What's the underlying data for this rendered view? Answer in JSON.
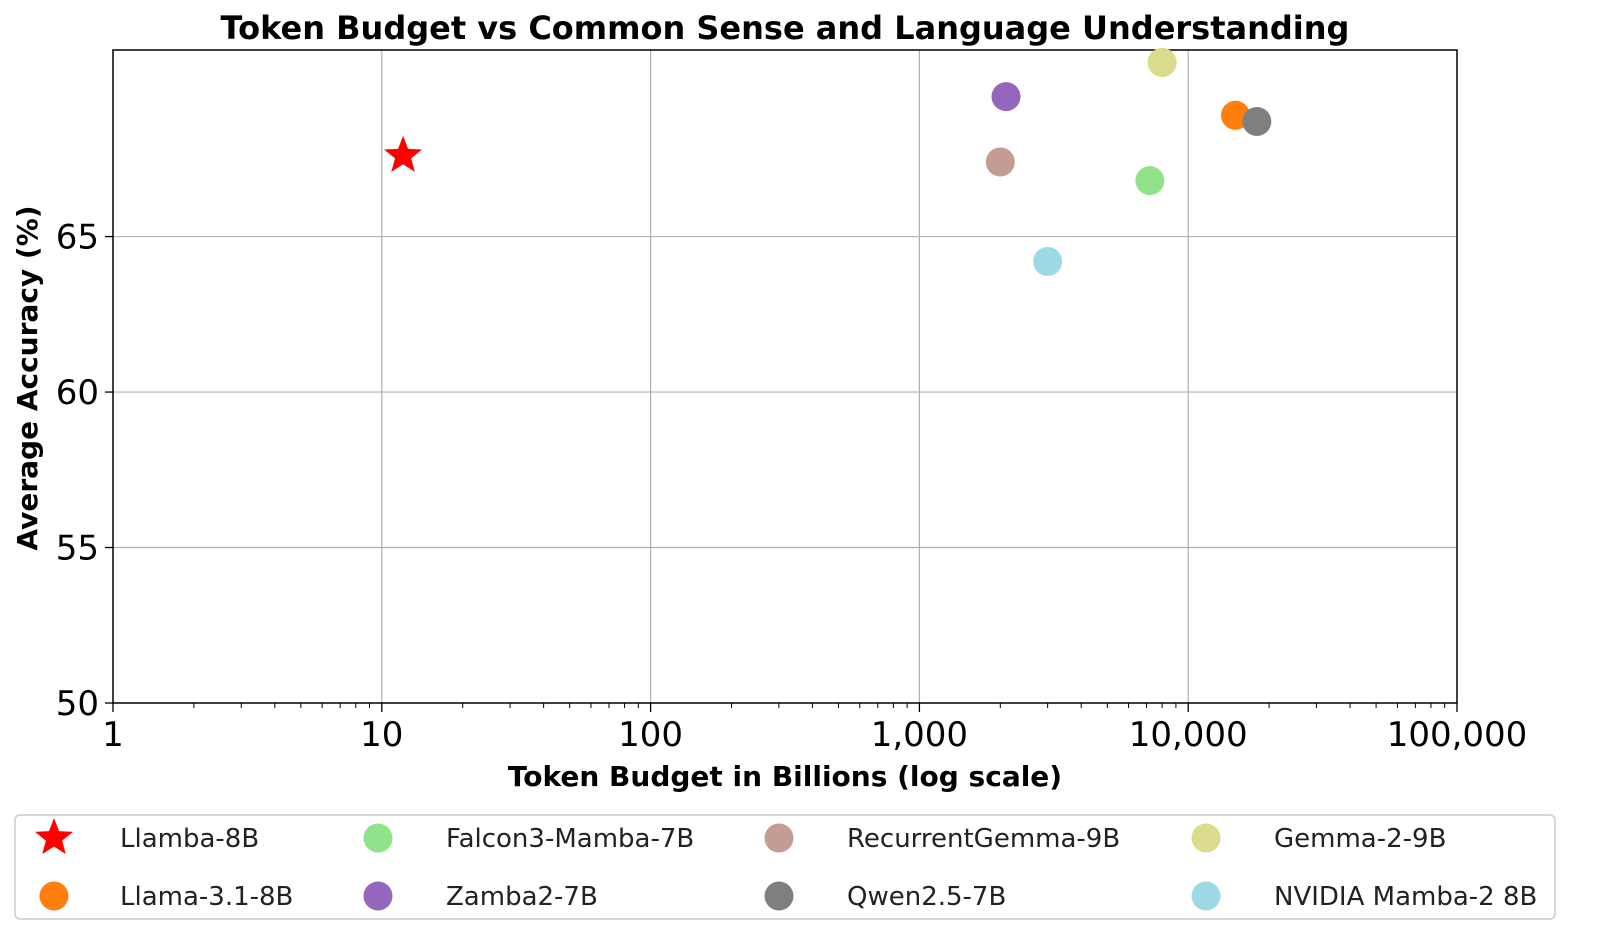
{
  "chart_data": {
    "type": "scatter",
    "title": "Token Budget vs Common Sense and Language Understanding",
    "xlabel": "Token Budget in Billions (log scale)",
    "ylabel": "Average Accuracy (%)",
    "x_scale": "log",
    "xlim": [
      1,
      100000
    ],
    "ylim": [
      50,
      71
    ],
    "x_ticks": [
      {
        "value": 1,
        "label": "1"
      },
      {
        "value": 10,
        "label": "10"
      },
      {
        "value": 100,
        "label": "100"
      },
      {
        "value": 1000,
        "label": "1,000"
      },
      {
        "value": 10000,
        "label": "10,000"
      },
      {
        "value": 100000,
        "label": "100,000"
      }
    ],
    "y_ticks": [
      {
        "value": 50,
        "label": "50"
      },
      {
        "value": 55,
        "label": "55"
      },
      {
        "value": 60,
        "label": "60"
      },
      {
        "value": 65,
        "label": "65"
      }
    ],
    "grid": true,
    "legend_position": "bottom",
    "series": [
      {
        "name": "Llamba-8B",
        "marker": "star",
        "color": "#ff0000",
        "x": 12,
        "y": 67.6
      },
      {
        "name": "Falcon3-Mamba-7B",
        "marker": "circle",
        "color": "#90e38a",
        "x": 7200,
        "y": 66.8
      },
      {
        "name": "RecurrentGemma-9B",
        "marker": "circle",
        "color": "#c49c94",
        "x": 2000,
        "y": 67.4
      },
      {
        "name": "Gemma-2-9B",
        "marker": "circle",
        "color": "#dbdb8d",
        "x": 8000,
        "y": 70.6
      },
      {
        "name": "Llama-3.1-8B",
        "marker": "circle",
        "color": "#ff7f0e",
        "x": 15000,
        "y": 68.9
      },
      {
        "name": "Zamba2-7B",
        "marker": "circle",
        "color": "#9467bd",
        "x": 2100,
        "y": 69.5
      },
      {
        "name": "Qwen2.5-7B",
        "marker": "circle",
        "color": "#7f7f7f",
        "x": 18000,
        "y": 68.7
      },
      {
        "name": "NVIDIA Mamba-2 8B",
        "marker": "circle",
        "color": "#9edae5",
        "x": 3000,
        "y": 64.2
      }
    ]
  }
}
